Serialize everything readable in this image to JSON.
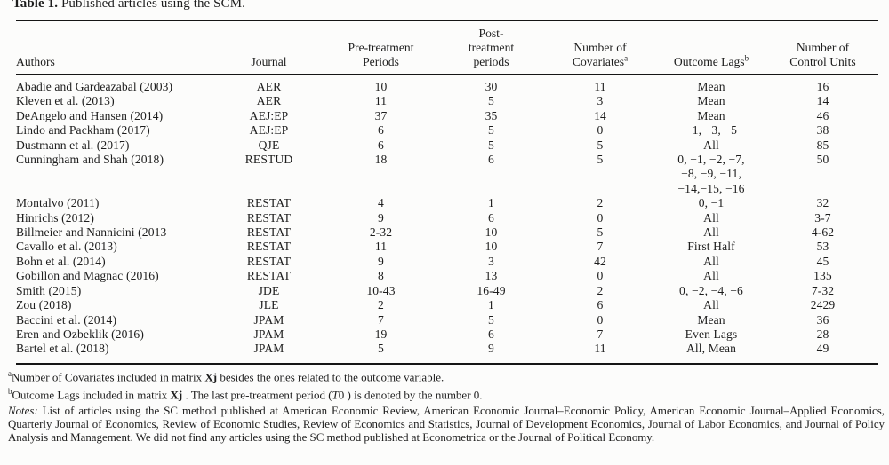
{
  "page": {
    "background": "#fcfcfb",
    "text_color": "#1d1d1d",
    "rule_color": "#151515"
  },
  "title": {
    "bold": "Table 1.",
    "rest": " Published articles using the SCM."
  },
  "table": {
    "headers": {
      "authors": "Authors",
      "journal": "Journal",
      "pre": "Pre-treatment\nPeriods",
      "post": "Post-\ntreatment\nperiods",
      "covariates": "Number of\nCovariates",
      "covariates_sup": "a",
      "lags": "Outcome Lags",
      "lags_sup": "b",
      "units": "Number of\nControl Units"
    },
    "rows": [
      {
        "authors": "Abadie and Gardeazabal (2003)",
        "journal": "AER",
        "pre": "10",
        "post": "30",
        "covariates": "11",
        "lags": "Mean",
        "units": "16"
      },
      {
        "authors": "Kleven et al. (2013)",
        "journal": "AER",
        "pre": "11",
        "post": "5",
        "covariates": "3",
        "lags": "Mean",
        "units": "14"
      },
      {
        "authors": "DeAngelo and Hansen (2014)",
        "journal": "AEJ:EP",
        "pre": "37",
        "post": "35",
        "covariates": "14",
        "lags": "Mean",
        "units": "46"
      },
      {
        "authors": "Lindo and Packham (2017)",
        "journal": "AEJ:EP",
        "pre": "6",
        "post": "5",
        "covariates": "0",
        "lags": "−1, −3, −5",
        "units": "38"
      },
      {
        "authors": "Dustmann et al. (2017)",
        "journal": "QJE",
        "pre": "6",
        "post": "5",
        "covariates": "5",
        "lags": "All",
        "units": "85"
      },
      {
        "authors": "Cunningham and Shah (2018)",
        "journal": "RESTUD",
        "pre": "18",
        "post": "6",
        "covariates": "5",
        "lags": "0, −1, −2, −7,\n−8, −9, −11,\n−14,−15, −16",
        "units": "50"
      },
      {
        "authors": "Montalvo (2011)",
        "journal": "RESTAT",
        "pre": "4",
        "post": "1",
        "covariates": "2",
        "lags": "0, −1",
        "units": "32"
      },
      {
        "authors": "Hinrichs (2012)",
        "journal": "RESTAT",
        "pre": "9",
        "post": "6",
        "covariates": "0",
        "lags": "All",
        "units": "3-7"
      },
      {
        "authors": "Billmeier and Nannicini (2013",
        "journal": "RESTAT",
        "pre": "2-32",
        "post": "10",
        "covariates": "5",
        "lags": "All",
        "units": "4-62"
      },
      {
        "authors": "Cavallo et al. (2013)",
        "journal": "RESTAT",
        "pre": "11",
        "post": "10",
        "covariates": "7",
        "lags": "First Half",
        "units": "53"
      },
      {
        "authors": "Bohn et al. (2014)",
        "journal": "RESTAT",
        "pre": "9",
        "post": "3",
        "covariates": "42",
        "lags": "All",
        "units": "45"
      },
      {
        "authors": "Gobillon and Magnac (2016)",
        "journal": "RESTAT",
        "pre": "8",
        "post": "13",
        "covariates": "0",
        "lags": "All",
        "units": "135"
      },
      {
        "authors": "Smith (2015)",
        "journal": "JDE",
        "pre": "10-43",
        "post": "16-49",
        "covariates": "2",
        "lags": "0, −2, −4, −6",
        "units": "7-32"
      },
      {
        "authors": "Zou (2018)",
        "journal": "JLE",
        "pre": "2",
        "post": "1",
        "covariates": "6",
        "lags": "All",
        "units": "2429"
      },
      {
        "authors": "Baccini et al. (2014)",
        "journal": "JPAM",
        "pre": "7",
        "post": "5",
        "covariates": "0",
        "lags": "Mean",
        "units": "36"
      },
      {
        "authors": "Eren and Ozbeklik (2016)",
        "journal": "JPAM",
        "pre": "19",
        "post": "6",
        "covariates": "7",
        "lags": "Even Lags",
        "units": "28"
      },
      {
        "authors": "Bartel et al. (2018)",
        "journal": "JPAM",
        "pre": "5",
        "post": "9",
        "covariates": "11",
        "lags": "All, Mean",
        "units": "49"
      }
    ]
  },
  "footnotes": {
    "a": {
      "sup": "a",
      "pre": "Number of Covariates included in matrix ",
      "bold": "Xj",
      "post": " besides the ones related to the outcome variable."
    },
    "b": {
      "sup": "b",
      "pre": "Outcome Lags included in matrix ",
      "bold": "Xj",
      "mid": " . The last pre-treatment period (",
      "italic": "T",
      "post": "0 ) is denoted by the number 0."
    },
    "notes": {
      "label": "Notes:",
      "text": " List of articles using the SC method published at American Economic Review, American Economic Journal–Economic Policy, American Economic Journal–Applied Economics, Quarterly Journal of Economics, Review of Economic Studies, Review of Economics and Statistics, Journal of Development Economics, Journal of Labor Economics, and Journal of Policy Analysis and Management. We did not find any articles using the SC method published at Econometrica or the Journal of Political Economy."
    }
  }
}
